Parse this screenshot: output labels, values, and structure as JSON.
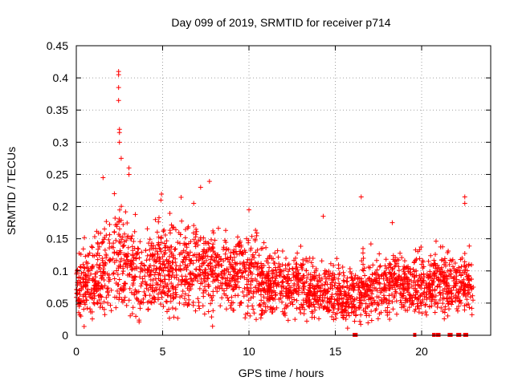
{
  "chart_data": {
    "type": "scatter",
    "title": "Day 099 of 2019, SRMTID for receiver p714",
    "xlabel": "GPS time / hours",
    "ylabel": "SRMTID / TECUs",
    "xlim": [
      0,
      24
    ],
    "ylim": [
      0,
      0.45
    ],
    "grid": true,
    "marker": "+",
    "color": "#ff0000",
    "x_ticks": [
      0,
      5,
      10,
      15,
      20
    ],
    "x_tick_labels": [
      "0",
      "5",
      "10",
      "15",
      "20"
    ],
    "y_ticks": [
      0,
      0.05,
      0.1,
      0.15,
      0.2,
      0.25,
      0.3,
      0.35,
      0.4,
      0.45
    ],
    "y_tick_labels": [
      "0",
      "0.05",
      "0.1",
      "0.15",
      "0.2",
      "0.25",
      "0.3",
      "0.35",
      "0.4",
      "0.45"
    ],
    "profile": {
      "description": "Approximate median SRMTID by hour, and observed range; dense series of ~3000 points",
      "hours": [
        0,
        0.5,
        1,
        1.5,
        2,
        2.5,
        3,
        3.5,
        4,
        4.5,
        5,
        5.5,
        6,
        6.5,
        7,
        7.5,
        8,
        8.5,
        9,
        9.5,
        10,
        10.5,
        11,
        11.5,
        12,
        12.5,
        13,
        13.5,
        14,
        14.5,
        15,
        15.5,
        16,
        16.5,
        17,
        17.5,
        18,
        18.5,
        19,
        19.5,
        20,
        20.5,
        21,
        21.5,
        22,
        22.5,
        23
      ],
      "median": [
        0.07,
        0.075,
        0.085,
        0.1,
        0.11,
        0.12,
        0.11,
        0.1,
        0.09,
        0.1,
        0.11,
        0.1,
        0.1,
        0.1,
        0.11,
        0.1,
        0.095,
        0.095,
        0.1,
        0.1,
        0.1,
        0.09,
        0.08,
        0.08,
        0.08,
        0.075,
        0.075,
        0.07,
        0.07,
        0.065,
        0.065,
        0.06,
        0.06,
        0.07,
        0.065,
        0.07,
        0.08,
        0.085,
        0.08,
        0.075,
        0.08,
        0.08,
        0.085,
        0.08,
        0.075,
        0.08,
        0.065
      ],
      "spread": [
        0.03,
        0.04,
        0.05,
        0.06,
        0.07,
        0.08,
        0.07,
        0.06,
        0.05,
        0.06,
        0.06,
        0.055,
        0.055,
        0.06,
        0.06,
        0.055,
        0.05,
        0.05,
        0.05,
        0.05,
        0.055,
        0.05,
        0.04,
        0.04,
        0.04,
        0.04,
        0.04,
        0.035,
        0.035,
        0.035,
        0.035,
        0.035,
        0.035,
        0.045,
        0.035,
        0.04,
        0.04,
        0.04,
        0.04,
        0.035,
        0.04,
        0.04,
        0.045,
        0.04,
        0.035,
        0.04,
        0.03
      ]
    },
    "peaks": [
      {
        "x": 2.45,
        "y": 0.41
      },
      {
        "x": 2.45,
        "y": 0.405
      },
      {
        "x": 2.45,
        "y": 0.385
      },
      {
        "x": 2.45,
        "y": 0.365
      },
      {
        "x": 2.5,
        "y": 0.32
      },
      {
        "x": 2.5,
        "y": 0.315
      },
      {
        "x": 2.5,
        "y": 0.3
      },
      {
        "x": 2.6,
        "y": 0.275
      },
      {
        "x": 3.05,
        "y": 0.26
      },
      {
        "x": 3.05,
        "y": 0.25
      },
      {
        "x": 1.55,
        "y": 0.245
      },
      {
        "x": 7.2,
        "y": 0.23
      },
      {
        "x": 16.5,
        "y": 0.215
      },
      {
        "x": 22.5,
        "y": 0.215
      },
      {
        "x": 22.5,
        "y": 0.205
      },
      {
        "x": 10.0,
        "y": 0.195
      },
      {
        "x": 14.3,
        "y": 0.185
      },
      {
        "x": 4.9,
        "y": 0.21
      },
      {
        "x": 6.8,
        "y": 0.205
      },
      {
        "x": 18.3,
        "y": 0.175
      }
    ],
    "zero_markers_x": [
      16.1,
      16.2,
      19.6,
      20.7,
      20.9,
      21.0,
      21.6,
      21.7,
      22.1,
      22.2,
      22.5,
      22.6
    ]
  }
}
